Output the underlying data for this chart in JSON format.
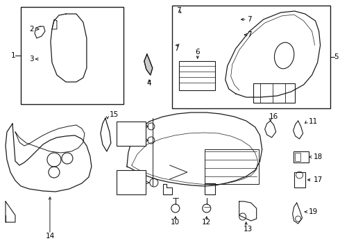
{
  "bg_color": "#ffffff",
  "line_color": "#1a1a1a",
  "text_color": "#000000",
  "fig_w": 4.9,
  "fig_h": 3.6,
  "dpi": 100
}
